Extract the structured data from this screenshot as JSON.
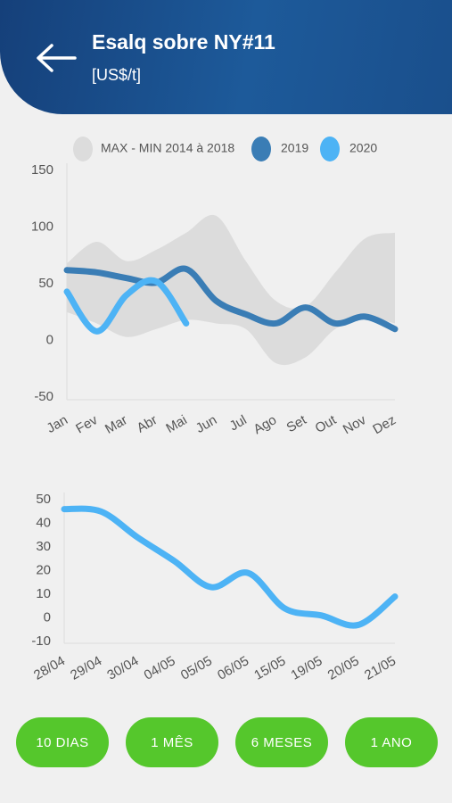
{
  "header": {
    "title": "Esalq sobre NY#11",
    "subtitle": "[US$/t]"
  },
  "chart_data": [
    {
      "type": "line",
      "categories": [
        "Jan",
        "Fev",
        "Mar",
        "Abr",
        "Mai",
        "Jun",
        "Jul",
        "Ago",
        "Set",
        "Out",
        "Nov",
        "Dez"
      ],
      "series": [
        {
          "name": "MAX - MIN 2014 à 2018",
          "color": "#dcdcdc",
          "type": "range",
          "values": [
            68,
            87,
            70,
            80,
            95,
            110,
            70,
            35,
            30,
            60,
            90,
            95
          ],
          "lows": [
            25,
            15,
            3,
            10,
            18,
            15,
            10,
            -20,
            -15,
            10,
            20,
            15
          ]
        },
        {
          "name": "2019",
          "color": "#3a7db5",
          "values": [
            62,
            60,
            55,
            51,
            63,
            35,
            23,
            15,
            29,
            15,
            21,
            10
          ]
        },
        {
          "name": "2020",
          "color": "#4db3f5",
          "values": [
            43,
            8,
            40,
            52,
            15,
            null,
            null,
            null,
            null,
            null,
            null,
            null
          ]
        }
      ],
      "ylim": [
        -50,
        150
      ],
      "yticks": [
        -50,
        0,
        50,
        100,
        150
      ]
    },
    {
      "type": "line",
      "categories": [
        "28/04",
        "29/04",
        "30/04",
        "04/05",
        "05/05",
        "06/05",
        "15/05",
        "19/05",
        "20/05",
        "21/05"
      ],
      "series": [
        {
          "name": null,
          "color": "#4db3f5",
          "values": [
            46,
            45,
            34,
            24,
            13,
            19,
            4,
            1,
            -3,
            9
          ]
        }
      ],
      "ylim": [
        -10,
        50
      ],
      "yticks": [
        -10,
        0,
        10,
        20,
        30,
        40,
        50
      ]
    }
  ],
  "buttons": [
    "10 DIAS",
    "1 MÊS",
    "6 MESES",
    "1 ANO"
  ]
}
